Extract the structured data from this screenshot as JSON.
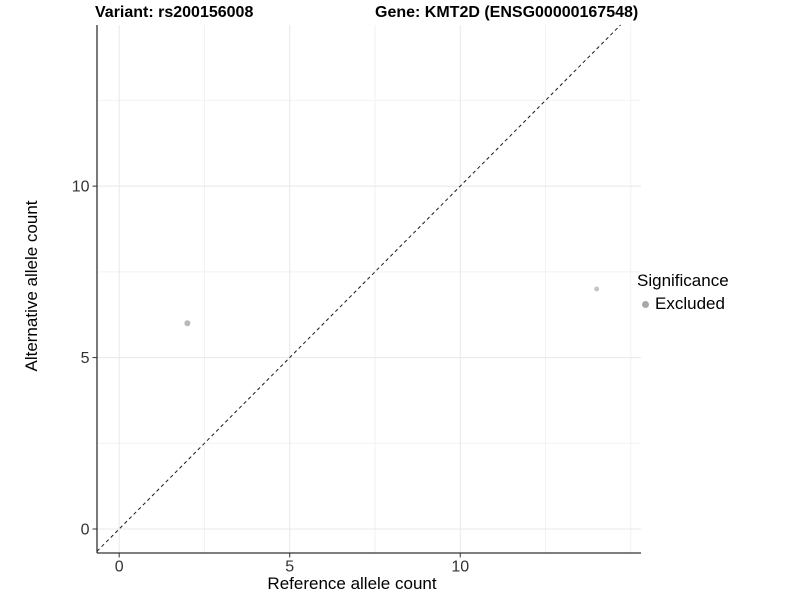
{
  "titles": {
    "variant": "Variant: rs200156008",
    "gene": "Gene: KMT2D (ENSG00000167548)"
  },
  "chart_data": {
    "type": "scatter",
    "title": "Variant: rs200156008   Gene: KMT2D (ENSG00000167548)",
    "xlabel": "Reference allele count",
    "ylabel": "Alternative allele count",
    "xlim": [
      -0.65,
      15.3
    ],
    "ylim": [
      -0.7,
      14.7
    ],
    "xticks": [
      0,
      5,
      10
    ],
    "yticks": [
      0,
      5,
      10
    ],
    "xticks_minor": [
      2.5,
      7.5,
      12.5,
      15
    ],
    "yticks_minor": [
      2.5,
      7.5,
      12.5
    ],
    "grid": "major+minor",
    "identity_line": {
      "equation": "y = x",
      "style": "dashed",
      "color": "#1a1a1a"
    },
    "series": [
      {
        "name": "Excluded",
        "points": [
          {
            "x": 2,
            "y": 6,
            "r": 3,
            "color": "#b9b9b9"
          },
          {
            "x": 14,
            "y": 7,
            "r": 2.5,
            "color": "#c6c6c6"
          }
        ]
      }
    ],
    "legend": {
      "title": "Significance",
      "position": "right",
      "entries": [
        {
          "label": "Excluded",
          "marker": "dot",
          "marker_color": "#a8a8a8"
        }
      ]
    },
    "colors": {
      "background": "#ffffff",
      "axis_line": "#333333",
      "tick": "#333333",
      "tick_label": "#333333",
      "grid_major": "#e8e8e8",
      "grid_minor": "#f2f2f2"
    }
  }
}
